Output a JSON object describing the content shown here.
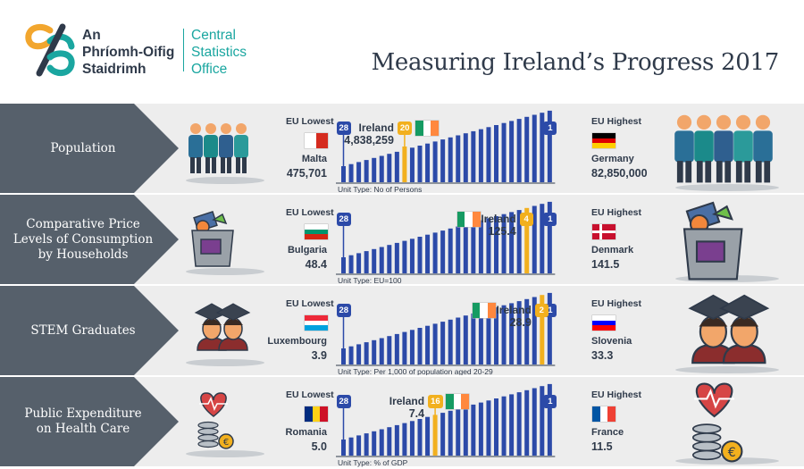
{
  "header": {
    "logo_ga": [
      "An",
      "Phríomh-Oifig",
      "Staidrimh"
    ],
    "logo_en": [
      "Central",
      "Statistics",
      "Office"
    ],
    "title": "Measuring Ireland’s Progress 2017"
  },
  "common": {
    "eu_lowest": "EU Lowest",
    "eu_highest": "EU Highest",
    "ireland": "Ireland"
  },
  "colors": {
    "bar": "#2c4aa8",
    "ireland_bar": "#f2b01e",
    "label_band": "#56606b",
    "row_bg": "#ededed",
    "accent": "#1aa6a0"
  },
  "rows": [
    {
      "label": "Population",
      "lowest": {
        "rank": "28",
        "country": "Malta",
        "value": "475,701",
        "flag": "malta"
      },
      "highest": {
        "rank": "1",
        "country": "Germany",
        "value": "82,850,000",
        "flag": "germany"
      },
      "ireland": {
        "rank": "20",
        "value": "4,838,259"
      },
      "unit": "Unit Type: No of Persons",
      "icon": "people-group-icon"
    },
    {
      "label": "Comparative Price\nLevels of Consumption\nby Households",
      "lowest": {
        "rank": "28",
        "country": "Bulgaria",
        "value": "48.4",
        "flag": "bulgaria"
      },
      "highest": {
        "rank": "1",
        "country": "Denmark",
        "value": "141.5",
        "flag": "denmark"
      },
      "ireland": {
        "rank": "4",
        "value": "125.4"
      },
      "unit": "Unit Type: EU=100",
      "icon": "shopping-bag-icon"
    },
    {
      "label": "STEM Graduates",
      "lowest": {
        "rank": "28",
        "country": "Luxembourg",
        "value": "3.9",
        "flag": "luxembourg"
      },
      "highest": {
        "rank": "1",
        "country": "Slovenia",
        "value": "33.3",
        "flag": "slovenia"
      },
      "ireland": {
        "rank": "2",
        "value": "28.9"
      },
      "unit": "Unit Type: Per 1,000 of population aged 20-29",
      "icon": "graduates-icon"
    },
    {
      "label": "Public Expenditure\non Health Care",
      "lowest": {
        "rank": "28",
        "country": "Romania",
        "value": "5.0",
        "flag": "romania"
      },
      "highest": {
        "rank": "1",
        "country": "France",
        "value": "11.5",
        "flag": "france"
      },
      "ireland": {
        "rank": "16",
        "value": "7.4"
      },
      "unit": "Unit Type: % of GDP",
      "icon": "heart-coins-icon"
    }
  ]
}
